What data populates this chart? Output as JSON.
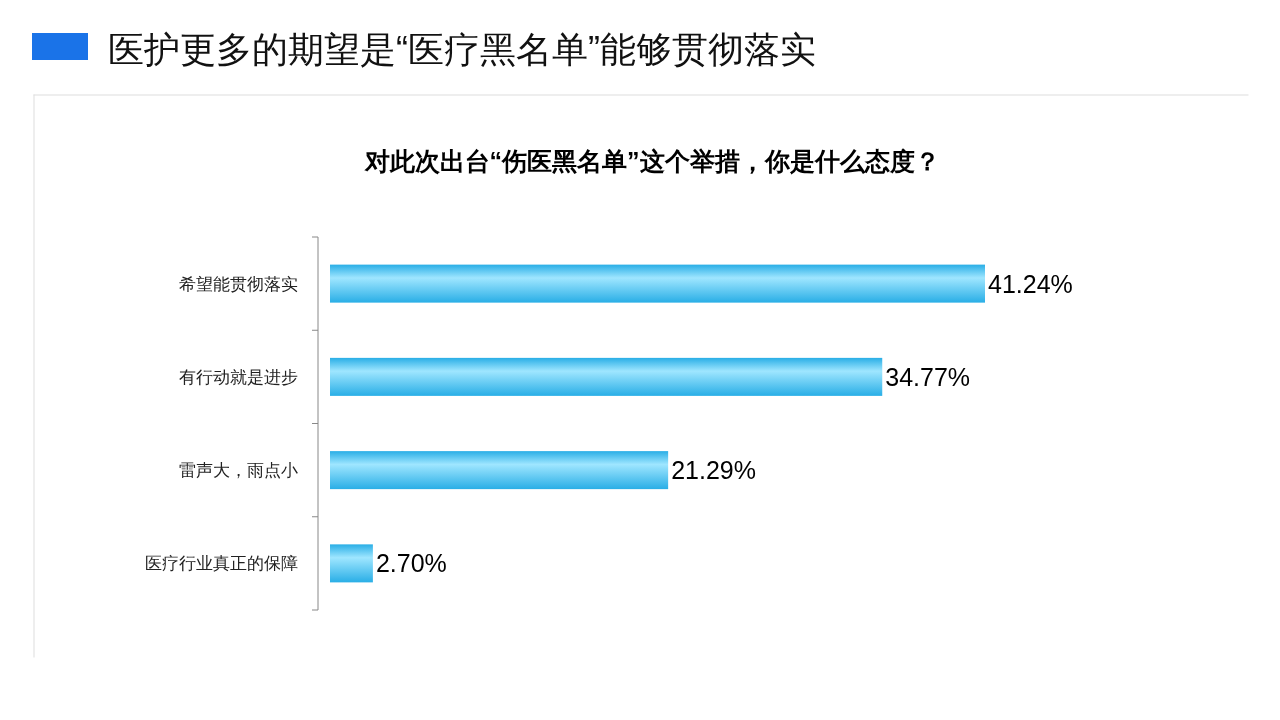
{
  "chart_data": {
    "type": "bar",
    "orientation": "horizontal",
    "title": "医护更多的期望是“医疗黑名单”能够贯彻落实",
    "subtitle": "对此次出台“伤医黑名单”这个举措，你是什么态度？",
    "categories": [
      "希望能贯彻落实",
      "有行动就是进步",
      "雷声大，雨点小",
      "医疗行业真正的保障"
    ],
    "values": [
      41.24,
      34.77,
      21.29,
      2.7
    ],
    "value_labels": [
      "41.24%",
      "34.77%",
      "21.29%",
      "2.70%"
    ],
    "color": "#29aee6",
    "grid": false,
    "legend": false
  }
}
